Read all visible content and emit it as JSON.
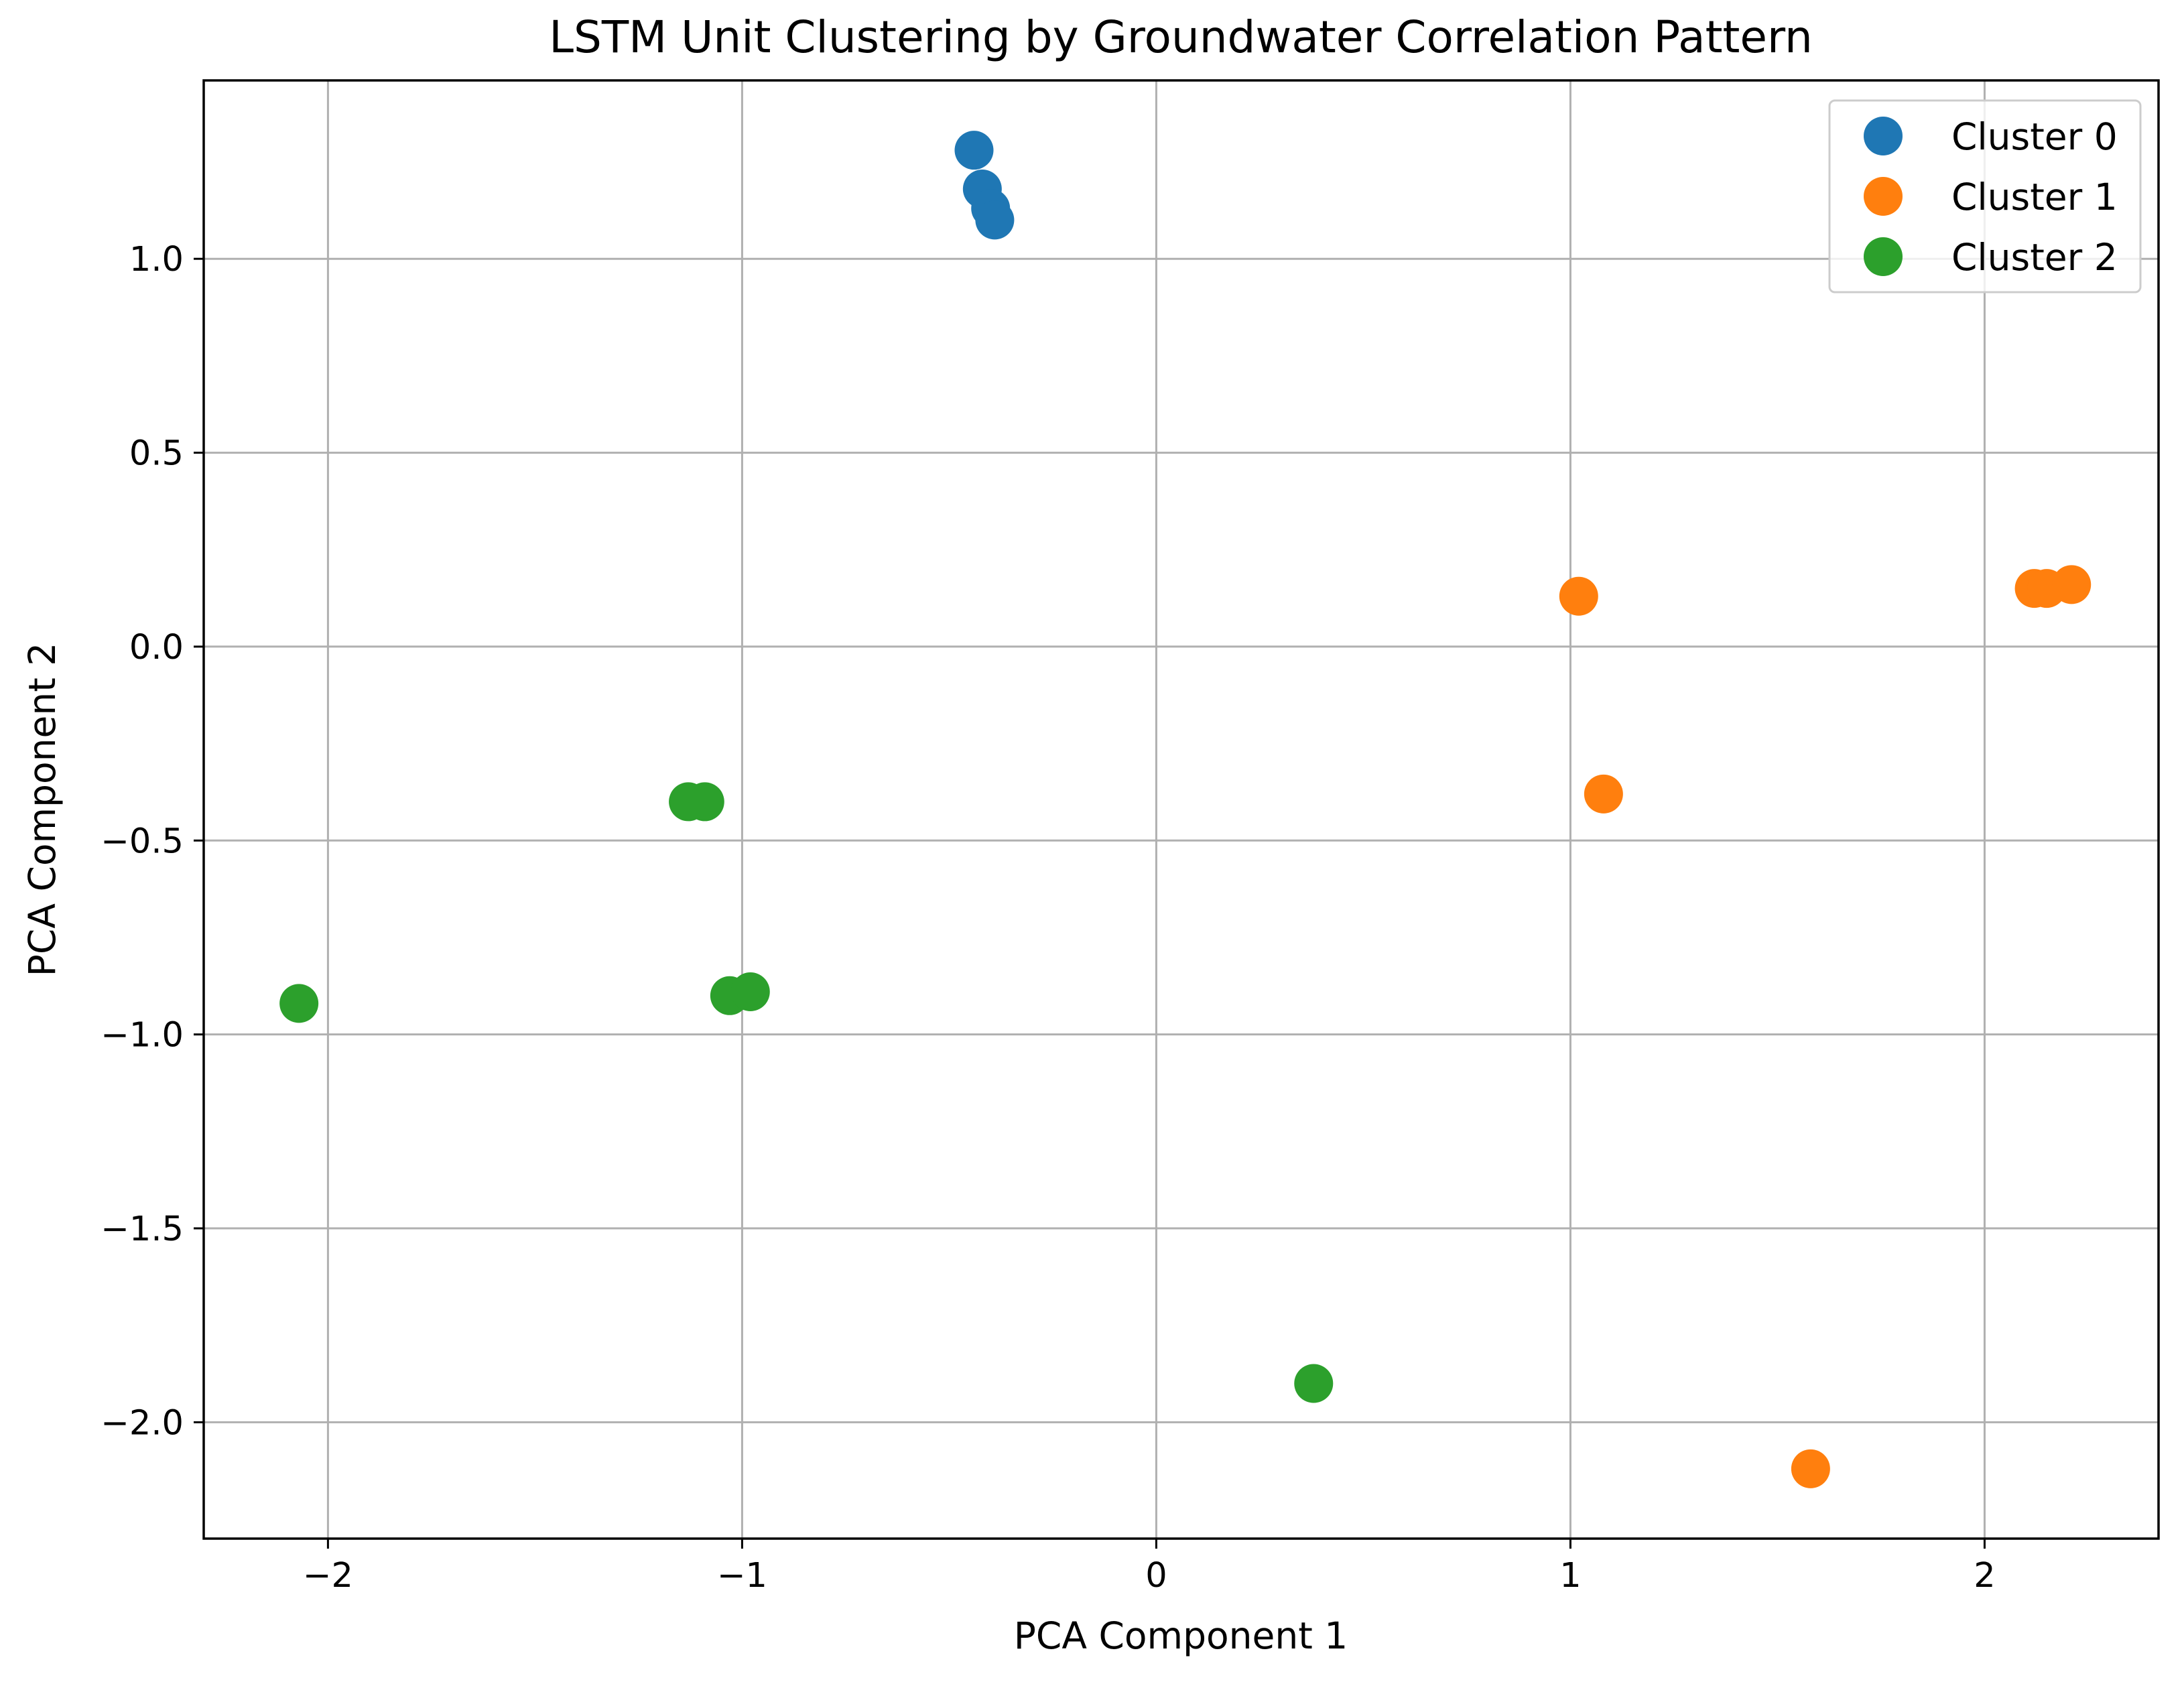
{
  "chart_data": {
    "type": "scatter",
    "title": "LSTM Unit Clustering by Groundwater Correlation Pattern",
    "xlabel": "PCA Component 1",
    "ylabel": "PCA Component 2",
    "xlim": [
      -2.3,
      2.42
    ],
    "ylim": [
      -2.3,
      1.46
    ],
    "grid": true,
    "legend_position": "top-right",
    "x_ticks": [
      -2,
      -1,
      0,
      1,
      2
    ],
    "x_tick_labels": [
      "−2",
      "−1",
      "0",
      "1",
      "2"
    ],
    "y_ticks": [
      1.0,
      0.5,
      0.0,
      -0.5,
      -1.0,
      -1.5,
      -2.0
    ],
    "y_tick_labels": [
      "1.0",
      "0.5",
      "0.0",
      "−0.5",
      "−1.0",
      "−1.5",
      "−2.0"
    ],
    "series": [
      {
        "name": "Cluster 0",
        "color": "#1f77b4",
        "points": [
          {
            "x": -0.44,
            "y": 1.28
          },
          {
            "x": -0.42,
            "y": 1.18
          },
          {
            "x": -0.4,
            "y": 1.13
          },
          {
            "x": -0.39,
            "y": 1.1
          }
        ]
      },
      {
        "name": "Cluster 1",
        "color": "#ff7f0e",
        "points": [
          {
            "x": 1.02,
            "y": 0.13
          },
          {
            "x": 2.12,
            "y": 0.15
          },
          {
            "x": 2.15,
            "y": 0.15
          },
          {
            "x": 2.21,
            "y": 0.16
          },
          {
            "x": 1.08,
            "y": -0.38
          },
          {
            "x": 1.58,
            "y": -2.12
          }
        ]
      },
      {
        "name": "Cluster 2",
        "color": "#2ca02c",
        "points": [
          {
            "x": -1.13,
            "y": -0.4
          },
          {
            "x": -1.09,
            "y": -0.4
          },
          {
            "x": -1.03,
            "y": -0.9
          },
          {
            "x": -0.98,
            "y": -0.89
          },
          {
            "x": -2.07,
            "y": -0.92
          },
          {
            "x": 0.38,
            "y": -1.9
          }
        ]
      }
    ]
  }
}
